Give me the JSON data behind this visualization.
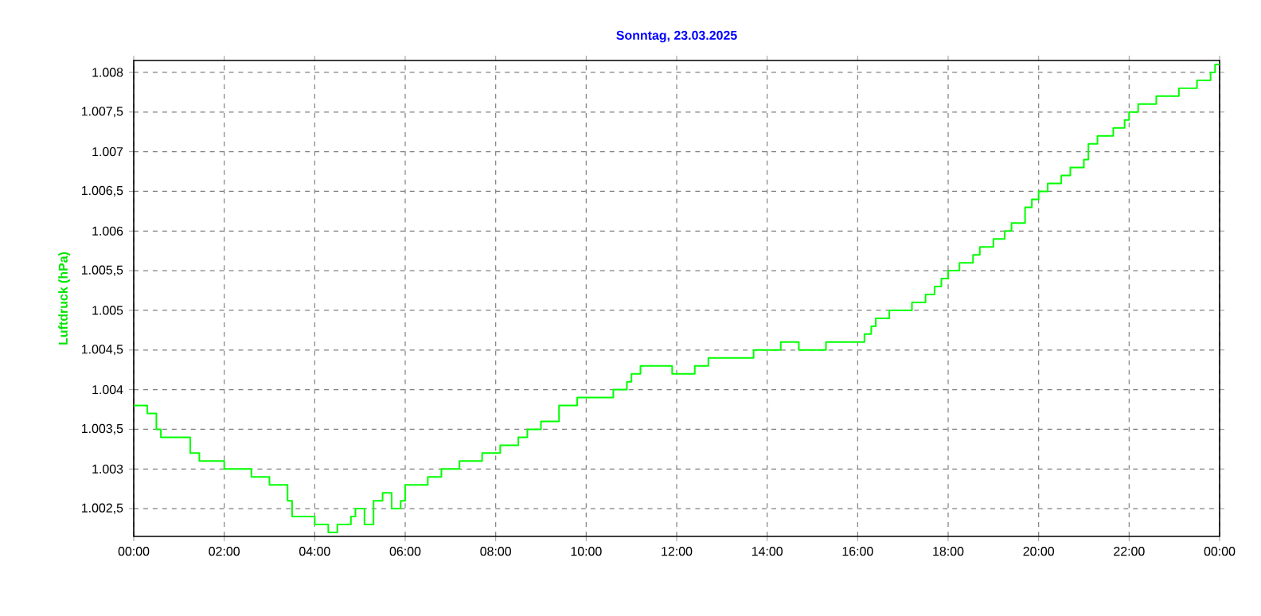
{
  "chart_data": {
    "type": "step",
    "title": "Sonntag, 23.03.2025",
    "ylabel": "Luftdruck (hPa)",
    "x": [
      0,
      0.3,
      0.5,
      0.6,
      1.25,
      1.45,
      2.0,
      2.6,
      3.0,
      3.4,
      3.5,
      4.0,
      4.3,
      4.5,
      4.8,
      4.9,
      5.1,
      5.3,
      5.5,
      5.7,
      5.9,
      6.0,
      6.5,
      6.8,
      7.2,
      7.7,
      8.1,
      8.5,
      8.7,
      9.0,
      9.4,
      9.8,
      10.6,
      10.9,
      11.0,
      11.2,
      11.9,
      12.4,
      12.7,
      13.7,
      14.3,
      14.7,
      15.3,
      16.15,
      16.3,
      16.4,
      16.7,
      17.2,
      17.5,
      17.7,
      17.85,
      18.0,
      18.25,
      18.55,
      18.7,
      19.0,
      19.25,
      19.4,
      19.7,
      19.85,
      20.0,
      20.2,
      20.5,
      20.7,
      21.0,
      21.1,
      21.3,
      21.65,
      21.9,
      22.0,
      22.2,
      22.6,
      23.1,
      23.5,
      23.8,
      23.9,
      24.0
    ],
    "series": [
      {
        "color": "#00ff00",
        "values": [
          1003.8,
          1003.7,
          1003.5,
          1003.4,
          1003.2,
          1003.1,
          1003.0,
          1002.9,
          1002.8,
          1002.6,
          1002.4,
          1002.3,
          1002.2,
          1002.3,
          1002.4,
          1002.5,
          1002.3,
          1002.6,
          1002.7,
          1002.5,
          1002.6,
          1002.8,
          1002.9,
          1003.0,
          1003.1,
          1003.2,
          1003.3,
          1003.4,
          1003.5,
          1003.6,
          1003.8,
          1003.9,
          1004.0,
          1004.1,
          1004.2,
          1004.3,
          1004.2,
          1004.3,
          1004.4,
          1004.5,
          1004.6,
          1004.5,
          1004.6,
          1004.7,
          1004.8,
          1004.9,
          1005.0,
          1005.1,
          1005.2,
          1005.3,
          1005.4,
          1005.5,
          1005.6,
          1005.7,
          1005.8,
          1005.9,
          1006.0,
          1006.1,
          1006.3,
          1006.4,
          1006.5,
          1006.6,
          1006.7,
          1006.8,
          1006.9,
          1007.1,
          1007.2,
          1007.3,
          1007.4,
          1007.5,
          1007.6,
          1007.7,
          1007.8,
          1007.9,
          1008.0,
          1008.1,
          1008.1
        ]
      }
    ],
    "xlim": [
      0,
      24
    ],
    "xticks": [
      {
        "value": 0,
        "label": "00:00"
      },
      {
        "value": 2,
        "label": "02:00"
      },
      {
        "value": 4,
        "label": "04:00"
      },
      {
        "value": 6,
        "label": "06:00"
      },
      {
        "value": 8,
        "label": "08:00"
      },
      {
        "value": 10,
        "label": "10:00"
      },
      {
        "value": 12,
        "label": "12:00"
      },
      {
        "value": 14,
        "label": "14:00"
      },
      {
        "value": 16,
        "label": "16:00"
      },
      {
        "value": 18,
        "label": "18:00"
      },
      {
        "value": 20,
        "label": "20:00"
      },
      {
        "value": 22,
        "label": "22:00"
      },
      {
        "value": 24,
        "label": "00:00"
      }
    ],
    "ylim": [
      1002.15,
      1008.15
    ],
    "yticks": [
      {
        "value": 1002.5,
        "label": "1.002,5"
      },
      {
        "value": 1003,
        "label": "1.003"
      },
      {
        "value": 1003.5,
        "label": "1.003,5"
      },
      {
        "value": 1004,
        "label": "1.004"
      },
      {
        "value": 1004.5,
        "label": "1.004,5"
      },
      {
        "value": 1005,
        "label": "1.005"
      },
      {
        "value": 1005.5,
        "label": "1.005,5"
      },
      {
        "value": 1006,
        "label": "1.006"
      },
      {
        "value": 1006.5,
        "label": "1.006,5"
      },
      {
        "value": 1007,
        "label": "1.007"
      },
      {
        "value": 1007.5,
        "label": "1.007,5"
      },
      {
        "value": 1008,
        "label": "1.008"
      }
    ],
    "grid": true,
    "line_style": "solid",
    "marker": "none"
  }
}
